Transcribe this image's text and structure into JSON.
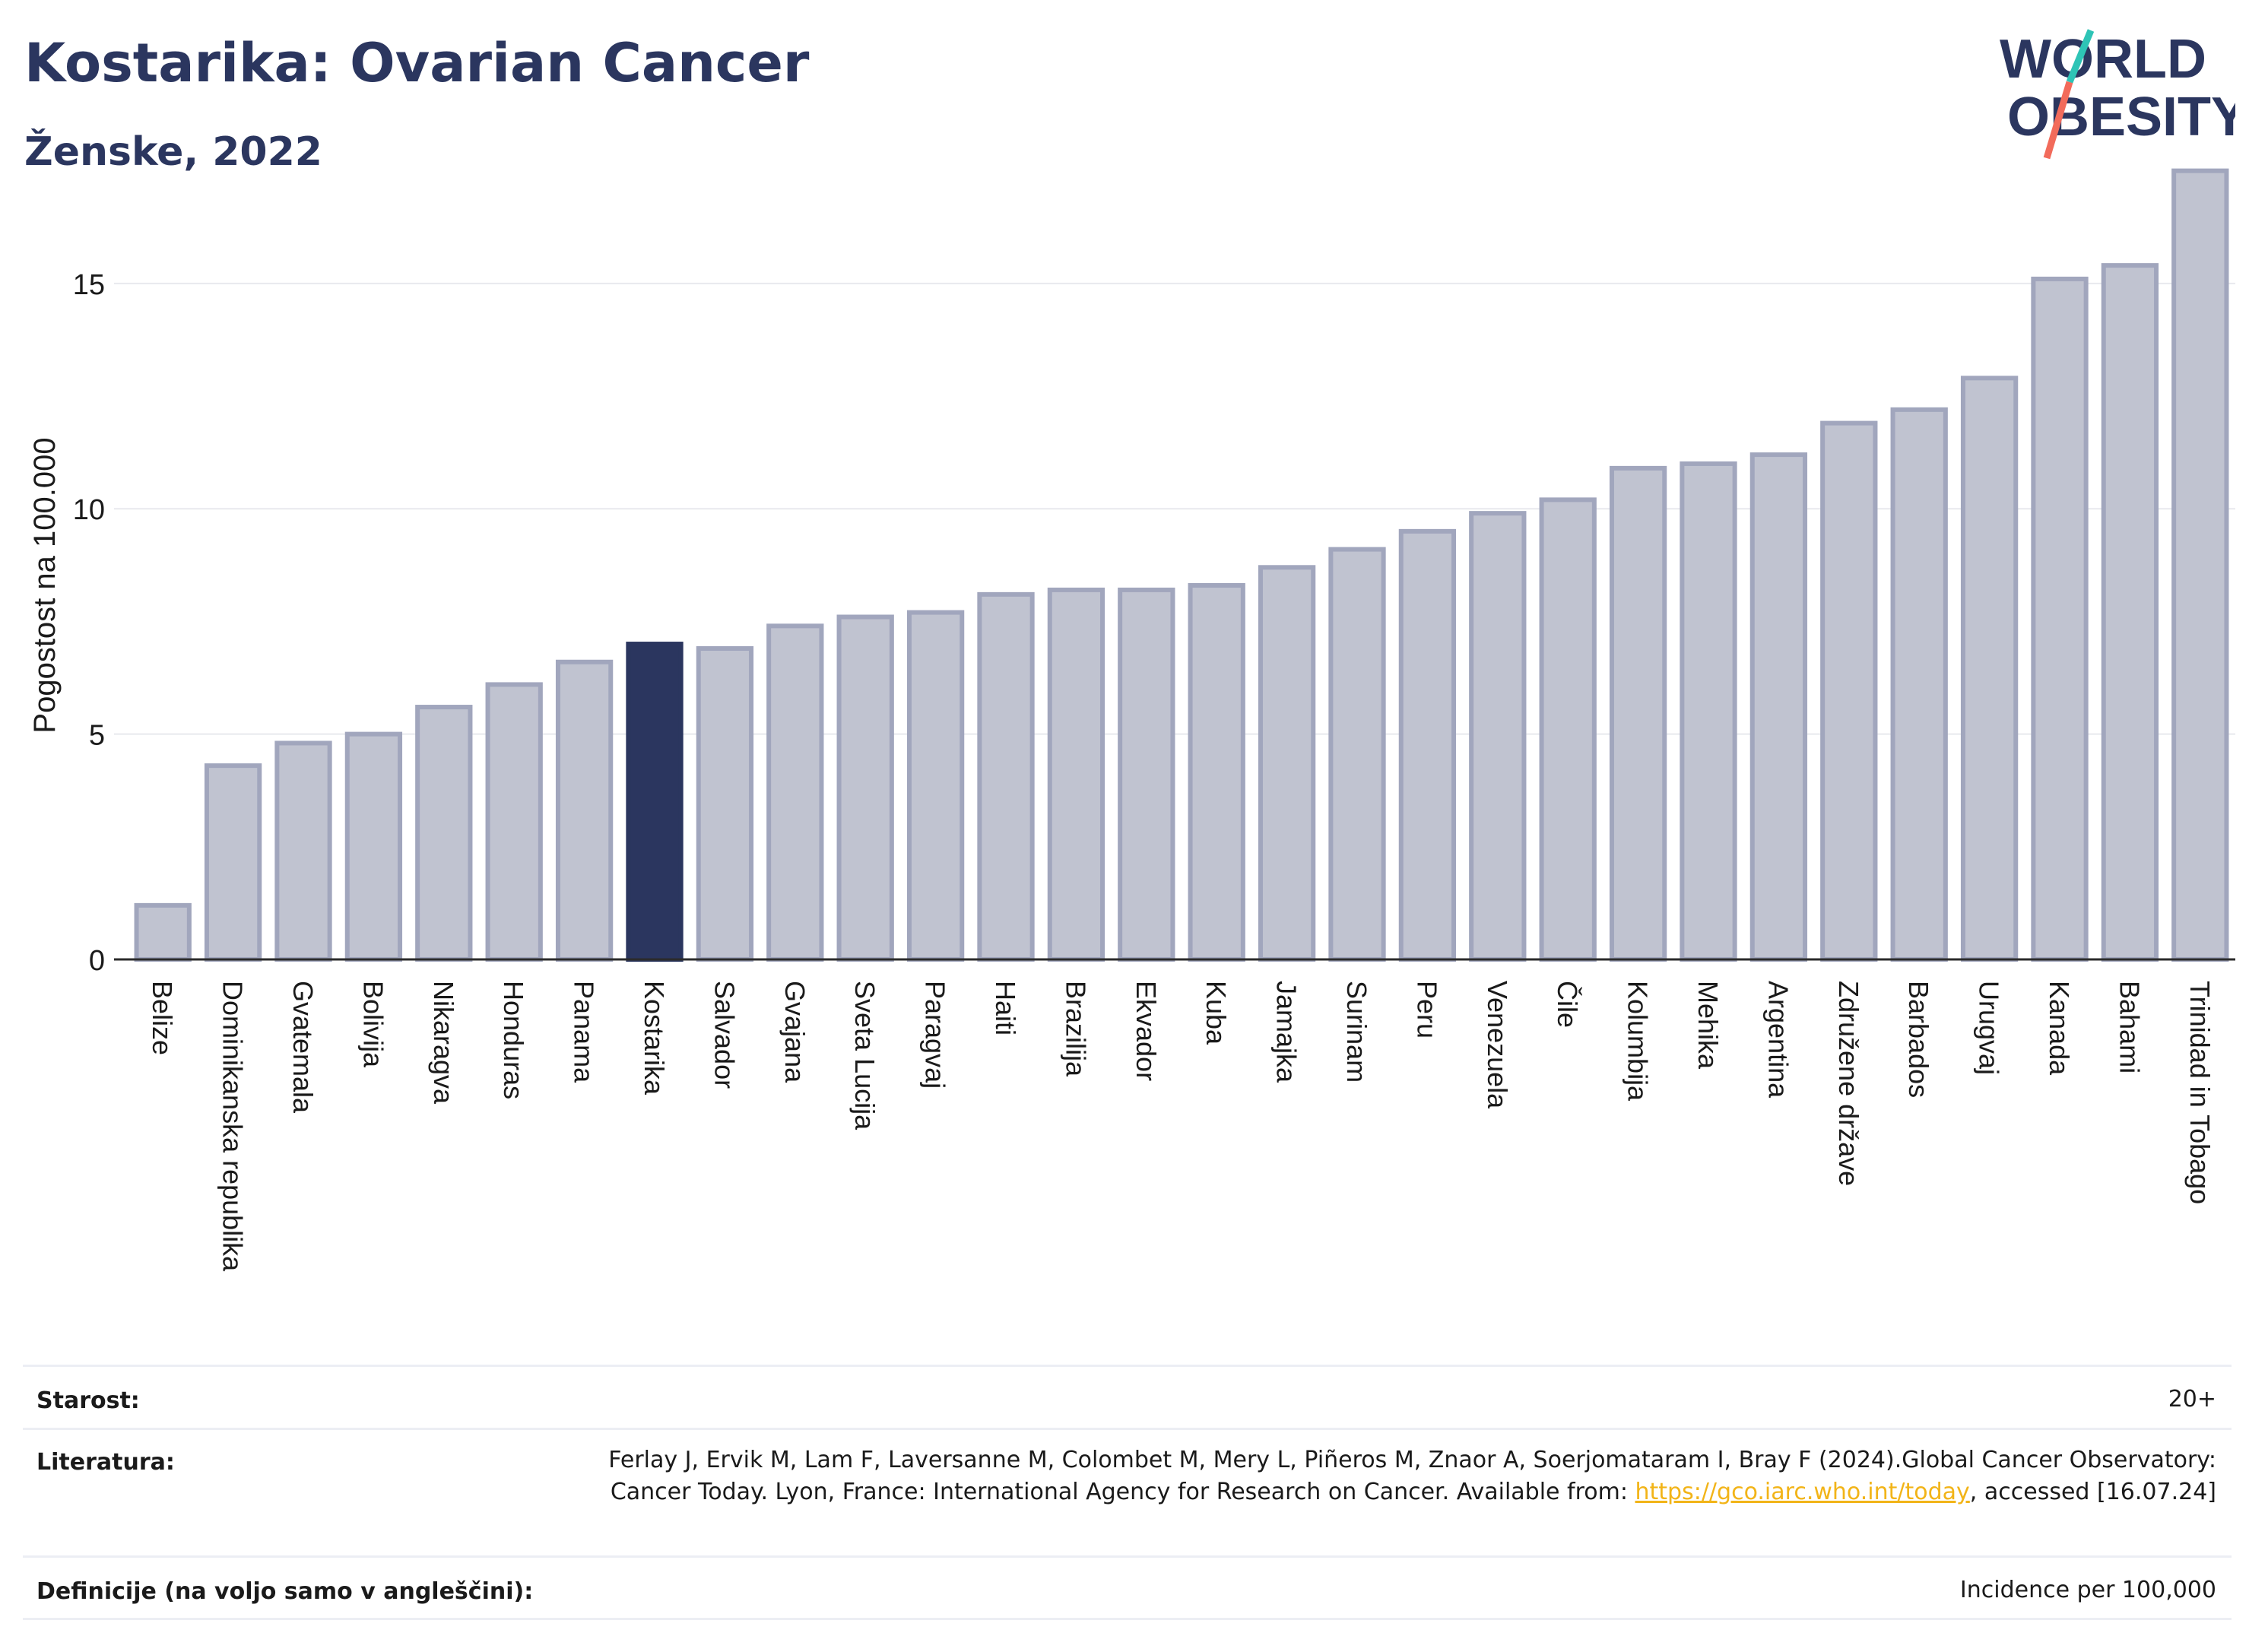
{
  "header": {
    "title": "Kostarika: Ovarian Cancer",
    "subtitle": "Ženske, 2022",
    "logo_line1": "WORLD",
    "logo_line2": "OBESITY"
  },
  "colors": {
    "highlight": "#2b365f",
    "bar_fill": "#c0c3d0",
    "bar_stroke": "#a1a6bd",
    "grid": "#e8e9ee",
    "text": "#1a1a1a",
    "link": "#f2b418",
    "logo_slash_top": "#2ec4b6",
    "logo_slash_bottom": "#f26b5b"
  },
  "chart_data": {
    "type": "bar",
    "ylabel": "Pogostost na 100.000",
    "ylim": [
      0,
      18
    ],
    "yticks": [
      0,
      5,
      10,
      15
    ],
    "grid": true,
    "highlight_category": "Kostarika",
    "categories": [
      "Belize",
      "Dominikanska republika",
      "Gvatemala",
      "Bolivija",
      "Nikaragva",
      "Honduras",
      "Panama",
      "Kostarika",
      "Salvador",
      "Gvajana",
      "Sveta Lucija",
      "Paragvaj",
      "Haiti",
      "Brazilija",
      "Ekvador",
      "Kuba",
      "Jamajka",
      "Surinam",
      "Peru",
      "Venezuela",
      "Čile",
      "Kolumbija",
      "Mehika",
      "Argentina",
      "Združene države",
      "Barbados",
      "Urugvaj",
      "Kanada",
      "Bahami",
      "Trinidad in Tobago"
    ],
    "values": [
      1.2,
      4.3,
      4.8,
      5.0,
      5.6,
      6.1,
      6.6,
      7.0,
      6.9,
      7.4,
      7.6,
      7.7,
      8.1,
      8.2,
      8.2,
      8.3,
      8.7,
      9.1,
      9.5,
      9.9,
      10.2,
      10.9,
      11.0,
      11.2,
      11.9,
      12.2,
      12.9,
      15.1,
      15.4,
      17.5
    ]
  },
  "meta": {
    "age_label": "Starost:",
    "age_value": "20+",
    "lit_label": "Literatura:",
    "lit_text_1": "Ferlay J, Ervik M, Lam F, Laversanne M, Colombet M, Mery L, Piñeros M, Znaor A, Soerjomataram I, Bray F (2024).Global Cancer Observatory: Cancer Today. Lyon, France: International Agency for Research on Cancer. Available from: ",
    "lit_link": "https://gco.iarc.who.int/today",
    "lit_text_2": ", accessed [16.07.24]",
    "def_label": "Definicije (na voljo samo v angleščini):",
    "def_value": "Incidence per 100,000"
  }
}
